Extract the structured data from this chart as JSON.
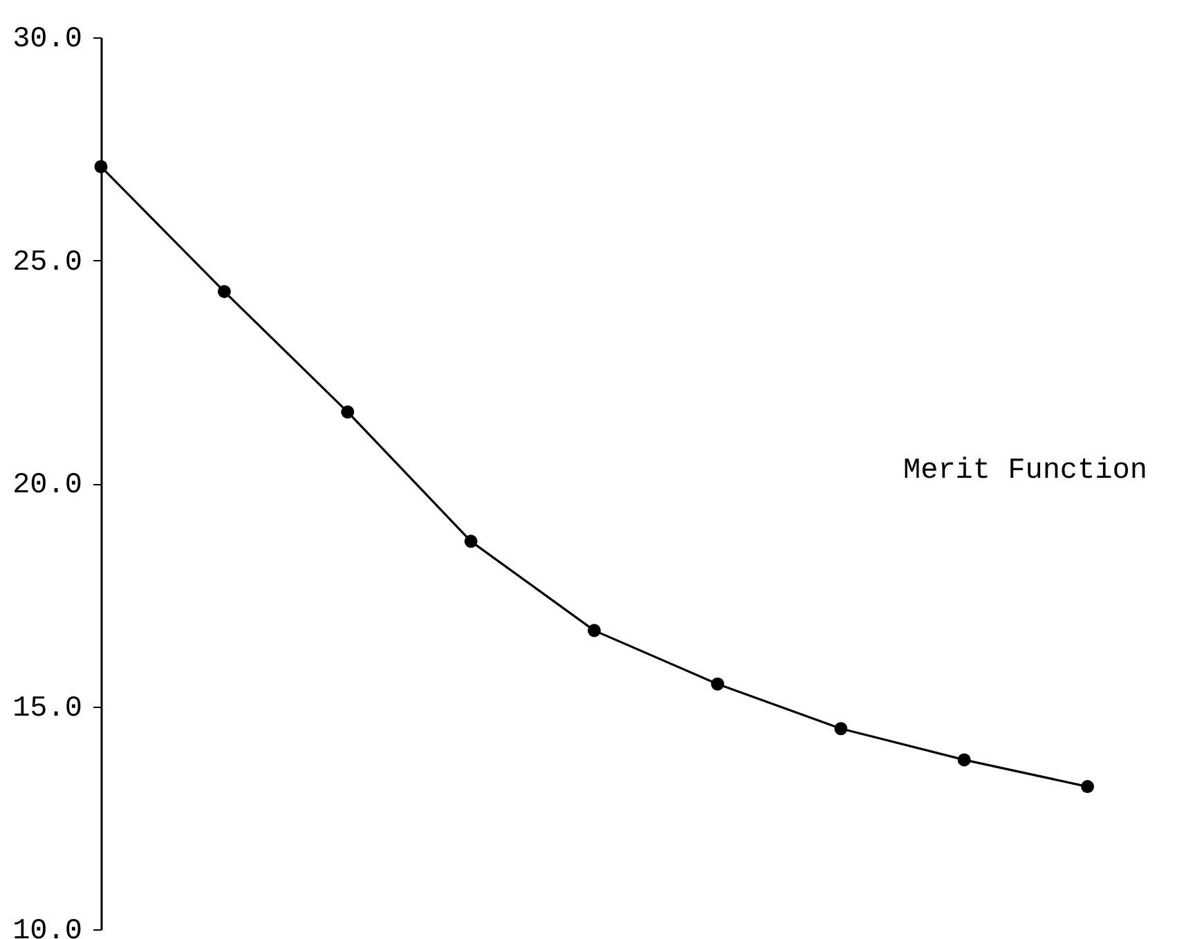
{
  "chart_data": {
    "type": "line",
    "categories": [
      null,
      null,
      null,
      null,
      null,
      null,
      null,
      null,
      null
    ],
    "series": [
      {
        "color": "#000000",
        "values": [
          27.1,
          24.3,
          21.6,
          18.7,
          16.7,
          15.5,
          14.5,
          13.8,
          13.2
        ]
      }
    ],
    "annotations": [
      "Merit Function"
    ],
    "ylim": [
      10,
      30
    ],
    "yticks": [
      {
        "value": 10,
        "label": "10.0"
      },
      {
        "value": 15,
        "label": "15.0"
      },
      {
        "value": 20,
        "label": "20.0"
      },
      {
        "value": 25,
        "label": "25.0"
      },
      {
        "value": 30,
        "label": "30.0"
      }
    ],
    "tick_labels": "y",
    "grid": false,
    "marker": "circle",
    "line_style": "solid"
  }
}
